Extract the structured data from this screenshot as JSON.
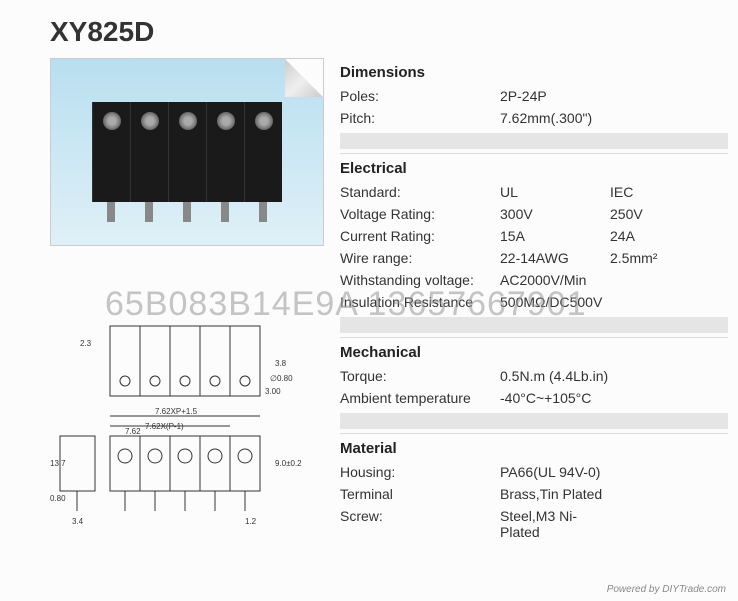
{
  "product_title": "XY825D",
  "watermark_text": "65B083B14E9A 13657667901",
  "footer_text": "Powered by DIYTrade.com",
  "sections": {
    "dimensions": {
      "header": "Dimensions",
      "rows": [
        {
          "label": "Poles:",
          "v1": "2P-24P",
          "v2": ""
        },
        {
          "label": "Pitch:",
          "v1": "7.62mm(.300\")",
          "v2": ""
        }
      ]
    },
    "electrical": {
      "header": "Electrical",
      "rows": [
        {
          "label": "Standard:",
          "v1": "UL",
          "v2": "IEC"
        },
        {
          "label": "Voltage Rating:",
          "v1": "300V",
          "v2": "250V"
        },
        {
          "label": "Current Rating:",
          "v1": "15A",
          "v2": "24A"
        },
        {
          "label": "Wire range:",
          "v1": "22-14AWG",
          "v2": "2.5mm²"
        },
        {
          "label": "Withstanding voltage:",
          "v1": "AC2000V/Min",
          "v2": ""
        },
        {
          "label": "Insulation Resistance",
          "v1": "500MΩ/DC500V",
          "v2": ""
        }
      ]
    },
    "mechanical": {
      "header": "Mechanical",
      "rows": [
        {
          "label": "Torque:",
          "v1": "0.5N.m (4.4Lb.in)",
          "v2": ""
        },
        {
          "label": "Ambient temperature",
          "v1": "-40°C~+105°C",
          "v2": ""
        }
      ]
    },
    "material": {
      "header": "Material",
      "rows": [
        {
          "label": "Housing:",
          "v1": "PA66(UL 94V-0)",
          "v2": ""
        },
        {
          "label": "Terminal",
          "v1": "Brass,Tin Plated",
          "v2": ""
        },
        {
          "label": "Screw:",
          "v1": "Steel,M3 Ni-Plated",
          "v2": ""
        }
      ]
    }
  },
  "diagram_labels": {
    "d1": "2.3",
    "d2": "3.8",
    "d3": "3.00",
    "d4": "∅0.80",
    "d5": "7.62XP+1.5",
    "d6": "7.62X(P-1)",
    "d7": "7.62",
    "d8": "13.7",
    "d9": "0.80",
    "d10": "3.4",
    "d11": "1.2",
    "d12": "9.0±0.2"
  },
  "colors": {
    "bg": "#fcfcfc",
    "text": "#333",
    "header": "#222",
    "divider_gray": "#e5e5e5",
    "border": "#ddd",
    "photo_grad_top": "#b8dff0",
    "photo_grad_bot": "#dff0f7",
    "block_black": "#1a1a1a",
    "watermark": "rgba(150,150,150,0.55)"
  }
}
